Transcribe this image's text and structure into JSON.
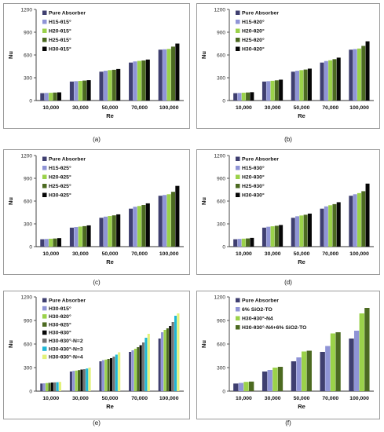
{
  "colors": {
    "Pure Absorber": "#3f3f70",
    "H15": "#8f94d6",
    "H20": "#9bd24a",
    "H25": "#4c6a21",
    "H30": "#060606",
    "H30-θ30°-N=2": "#727272",
    "H30-θ30°-N=3": "#1fb7d6",
    "H30-θ30°-N=4": "#e3f27a",
    "6% SiO2-TO": "#8f94d6",
    "H30-θ30°-N4": "#9bd24a",
    "H30-θ30°-N4+6% SiO2-TO": "#4c6a21"
  },
  "chart_data": [
    {
      "panel": "(a)",
      "type": "bar",
      "xlabel": "Re",
      "ylabel": "Nu",
      "ylim": [
        0,
        1200
      ],
      "yticks": [
        "0",
        "300",
        "600",
        "900",
        "1200"
      ],
      "categories": [
        "10,000",
        "30,000",
        "50,000",
        "70,000",
        "100,000"
      ],
      "legend_position": "top-left",
      "series": [
        {
          "name": "Pure Absorber",
          "key": "Pure Absorber",
          "values": [
            97,
            250,
            380,
            500,
            670
          ]
        },
        {
          "name": "H15-θ15°",
          "key": "H15",
          "values": [
            100,
            255,
            392,
            515,
            675
          ]
        },
        {
          "name": "H20-θ15°",
          "key": "H20",
          "values": [
            102,
            258,
            400,
            522,
            680
          ]
        },
        {
          "name": "H25-θ15°",
          "key": "H25",
          "values": [
            105,
            263,
            405,
            528,
            710
          ]
        },
        {
          "name": "H30-θ15°",
          "key": "H30",
          "values": [
            108,
            268,
            415,
            540,
            750
          ]
        }
      ]
    },
    {
      "panel": "(b)",
      "type": "bar",
      "xlabel": "Re",
      "ylabel": "Nu",
      "ylim": [
        0,
        1200
      ],
      "yticks": [
        "0",
        "300",
        "600",
        "900",
        "1200"
      ],
      "categories": [
        "10,000",
        "30,000",
        "50,000",
        "70,000",
        "100,000"
      ],
      "legend_position": "top-left",
      "series": [
        {
          "name": "Pure Absorber",
          "key": "Pure Absorber",
          "values": [
            97,
            250,
            380,
            500,
            670
          ]
        },
        {
          "name": "H15-θ20°",
          "key": "H15",
          "values": [
            100,
            255,
            392,
            520,
            678
          ]
        },
        {
          "name": "H20-θ20°",
          "key": "H20",
          "values": [
            103,
            260,
            400,
            530,
            685
          ]
        },
        {
          "name": "H25-θ20°",
          "key": "H25",
          "values": [
            106,
            266,
            408,
            545,
            720
          ]
        },
        {
          "name": "H30-θ20°",
          "key": "H30",
          "values": [
            110,
            275,
            420,
            565,
            780
          ]
        }
      ]
    },
    {
      "panel": "(c)",
      "type": "bar",
      "xlabel": "Re",
      "ylabel": "Nu",
      "ylim": [
        0,
        1200
      ],
      "yticks": [
        "0",
        "300",
        "600",
        "900",
        "1200"
      ],
      "categories": [
        "10,000",
        "30,000",
        "50,000",
        "70,000",
        "100,000"
      ],
      "legend_position": "top-left",
      "series": [
        {
          "name": "Pure Absorber",
          "key": "Pure Absorber",
          "values": [
            97,
            250,
            380,
            500,
            670
          ]
        },
        {
          "name": "H15-θ25°",
          "key": "H15",
          "values": [
            101,
            258,
            395,
            525,
            680
          ]
        },
        {
          "name": "H20-θ25°",
          "key": "H20",
          "values": [
            104,
            264,
            403,
            535,
            690
          ]
        },
        {
          "name": "H25-θ25°",
          "key": "H25",
          "values": [
            107,
            270,
            412,
            548,
            722
          ]
        },
        {
          "name": "H30-θ25°",
          "key": "H30",
          "values": [
            112,
            280,
            425,
            570,
            800
          ]
        }
      ]
    },
    {
      "panel": "(d)",
      "type": "bar",
      "xlabel": "Re",
      "ylabel": "Nu",
      "ylim": [
        0,
        1200
      ],
      "yticks": [
        "0",
        "300",
        "600",
        "900",
        "1200"
      ],
      "categories": [
        "10,000",
        "30,000",
        "50,000",
        "70,000",
        "100,000"
      ],
      "legend_position": "top-left",
      "series": [
        {
          "name": "Pure Absorber",
          "key": "Pure Absorber",
          "values": [
            97,
            250,
            380,
            500,
            670
          ]
        },
        {
          "name": "H15-θ30°",
          "key": "H15",
          "values": [
            102,
            262,
            400,
            530,
            690
          ]
        },
        {
          "name": "H20-θ30°",
          "key": "H20",
          "values": [
            105,
            268,
            410,
            545,
            705
          ]
        },
        {
          "name": "H25-θ30°",
          "key": "H25",
          "values": [
            108,
            275,
            420,
            560,
            730
          ]
        },
        {
          "name": "H30-θ30°",
          "key": "H30",
          "values": [
            115,
            285,
            435,
            585,
            830
          ]
        }
      ]
    },
    {
      "panel": "(e)",
      "type": "bar",
      "xlabel": "Re",
      "ylabel": "Nu",
      "ylim": [
        0,
        1200
      ],
      "yticks": [
        "0",
        "300",
        "600",
        "900",
        "1200"
      ],
      "categories": [
        "10,000",
        "30,000",
        "50,000",
        "70,000",
        "100,000"
      ],
      "legend_position": "top-left",
      "series": [
        {
          "name": "Pure Absorber",
          "key": "Pure Absorber",
          "values": [
            97,
            250,
            380,
            500,
            670
          ]
        },
        {
          "name": "H30-θ15°",
          "key": "H15",
          "values": [
            100,
            258,
            395,
            520,
            750
          ]
        },
        {
          "name": "H30-θ20°",
          "key": "H20",
          "values": [
            103,
            262,
            402,
            540,
            780
          ]
        },
        {
          "name": "H30-θ25°",
          "key": "H25",
          "values": [
            106,
            268,
            410,
            560,
            800
          ]
        },
        {
          "name": "H30-θ30°",
          "key": "H30",
          "values": [
            110,
            275,
            420,
            585,
            830
          ]
        },
        {
          "name": "H30-θ30°-N=2",
          "key": "H30-θ30°-N=2",
          "values": [
            112,
            280,
            440,
            620,
            880
          ]
        },
        {
          "name": "H30-θ30°-N=3",
          "key": "H30-θ30°-N=3",
          "values": [
            114,
            288,
            465,
            680,
            960
          ]
        },
        {
          "name": "H30-θ30°-N=4",
          "key": "H30-θ30°-N=4",
          "values": [
            118,
            300,
            495,
            730,
            990
          ]
        }
      ]
    },
    {
      "panel": "(f)",
      "type": "bar",
      "xlabel": "Re",
      "ylabel": "Nu",
      "ylim": [
        0,
        1200
      ],
      "yticks": [
        "0",
        "300",
        "600",
        "900",
        "1200"
      ],
      "categories": [
        "10,000",
        "30,000",
        "50,000",
        "70,000",
        "100,000"
      ],
      "legend_position": "top-left",
      "series": [
        {
          "name": "Pure Absorber",
          "key": "Pure Absorber",
          "values": [
            97,
            250,
            380,
            500,
            670
          ]
        },
        {
          "name": "6% SiO2-TO",
          "key": "6% SiO2-TO",
          "values": [
            105,
            270,
            430,
            575,
            770
          ]
        },
        {
          "name": "H30-θ30°-N4",
          "key": "H30-θ30°-N4",
          "values": [
            118,
            300,
            505,
            735,
            990
          ]
        },
        {
          "name": "H30-θ30°-N4+6% SiO2-TO",
          "key": "H30-θ30°-N4+6% SiO2-TO",
          "values": [
            122,
            310,
            515,
            750,
            1060
          ]
        }
      ]
    }
  ]
}
